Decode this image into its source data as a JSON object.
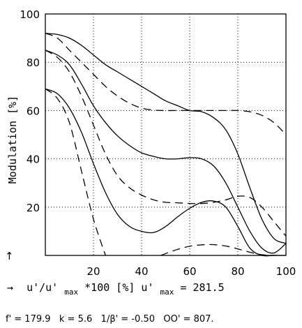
{
  "chart_data": {
    "type": "line",
    "title": "",
    "xlabel": "u'/u'max *100 [%]",
    "xlabel_parts": {
      "arrow": "→",
      "prefix": "u'/u'",
      "sub": "max",
      "mid": " *100 [%] u'",
      "sub2": "max",
      "suffix": " = 281.5"
    },
    "ylabel": "Modulation [%]",
    "ylabel_arrow": "↑",
    "xlim": [
      0,
      100
    ],
    "ylim": [
      0,
      100
    ],
    "xticks": [
      20,
      40,
      60,
      80,
      100
    ],
    "yticks": [
      20,
      40,
      60,
      80,
      100
    ],
    "grid": true,
    "footer": "f' = 179.9   k = 5.6   1/β' = -0.50   OO' = 807.",
    "series": [
      {
        "style": "solid",
        "x": [
          0,
          5,
          10,
          15,
          20,
          25,
          30,
          35,
          40,
          45,
          50,
          55,
          60,
          65,
          70,
          75,
          80,
          85,
          90,
          95,
          100
        ],
        "y": [
          92,
          91.5,
          90,
          87,
          83,
          79,
          76,
          73,
          70,
          67,
          64,
          62,
          60,
          59.5,
          57,
          52,
          42,
          28,
          15,
          7,
          5
        ]
      },
      {
        "style": "dashed",
        "x": [
          0,
          5,
          10,
          15,
          20,
          25,
          30,
          35,
          40,
          45,
          50,
          55,
          60,
          65,
          70,
          75,
          80,
          85,
          90,
          95,
          100
        ],
        "y": [
          92,
          90,
          85,
          80,
          75,
          70,
          66,
          63,
          61,
          60.2,
          60,
          60,
          60,
          60,
          60,
          60,
          60,
          59.5,
          58,
          55,
          50
        ]
      },
      {
        "style": "solid",
        "x": [
          0,
          5,
          10,
          15,
          20,
          25,
          30,
          35,
          40,
          45,
          50,
          55,
          60,
          65,
          70,
          75,
          80,
          85,
          90,
          95,
          100
        ],
        "y": [
          85,
          83,
          79,
          71,
          62,
          55,
          49.5,
          45.5,
          42.5,
          41,
          40,
          40,
          40.5,
          40,
          37,
          30,
          20,
          10,
          3,
          1,
          5
        ]
      },
      {
        "style": "dashed",
        "x": [
          0,
          5,
          10,
          15,
          20,
          25,
          30,
          35,
          40,
          45,
          50,
          55,
          60,
          65,
          70,
          75,
          80,
          85,
          90,
          95,
          100
        ],
        "y": [
          85,
          82,
          76,
          66,
          54,
          42,
          33,
          28,
          25,
          23,
          22,
          21.8,
          21.5,
          21.5,
          22,
          23,
          24.5,
          24,
          20,
          14,
          8
        ]
      },
      {
        "style": "solid",
        "x": [
          0,
          5,
          10,
          15,
          20,
          25,
          30,
          35,
          40,
          45,
          50,
          55,
          60,
          65,
          70,
          75,
          80,
          85,
          90,
          95,
          100
        ],
        "y": [
          69,
          67,
          61,
          51,
          38,
          26,
          17,
          12,
          10,
          9.5,
          12,
          16,
          19.5,
          22,
          22.5,
          20,
          12,
          3,
          0,
          0,
          0
        ]
      },
      {
        "style": "dashed",
        "x": [
          0,
          5,
          10,
          15,
          20,
          25
        ],
        "y": [
          69,
          65,
          55,
          35,
          15,
          0
        ]
      },
      {
        "style": "dashed",
        "x": [
          48,
          52,
          56,
          60,
          64,
          68,
          72,
          76,
          80,
          84,
          88,
          92,
          96
        ],
        "y": [
          0,
          1.5,
          2.8,
          3.8,
          4.3,
          4.5,
          4.3,
          3.7,
          2.7,
          1.6,
          0.6,
          0.1,
          0
        ]
      }
    ]
  }
}
